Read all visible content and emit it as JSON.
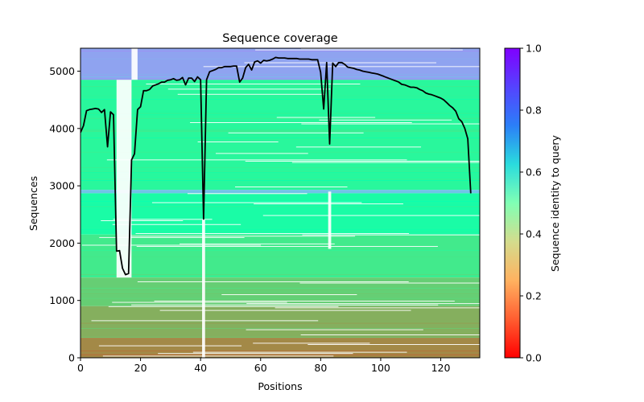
{
  "chart_data": {
    "type": "heatmap",
    "title": "Sequence coverage",
    "xlabel": "Positions",
    "ylabel": "Sequences",
    "xlim": [
      0,
      133
    ],
    "ylim": [
      0,
      5400
    ],
    "x_ticks": [
      0,
      20,
      40,
      60,
      80,
      100,
      120
    ],
    "y_ticks": [
      0,
      1000,
      2000,
      3000,
      4000,
      5000
    ],
    "colorbar": {
      "label": "Sequence identity to query",
      "range": [
        0,
        1
      ],
      "ticks": [
        "0.0",
        "0.2",
        "0.4",
        "0.6",
        "0.8",
        "1.0"
      ],
      "colormap": "rainbow_r"
    },
    "coverage_line": {
      "color": "#000000",
      "points": [
        [
          0,
          3930
        ],
        [
          1,
          4050
        ],
        [
          2,
          4310
        ],
        [
          3,
          4330
        ],
        [
          4,
          4340
        ],
        [
          5,
          4350
        ],
        [
          6,
          4340
        ],
        [
          7,
          4280
        ],
        [
          8,
          4330
        ],
        [
          9,
          3680
        ],
        [
          10,
          4290
        ],
        [
          11,
          4240
        ],
        [
          12,
          1860
        ],
        [
          13,
          1870
        ],
        [
          14,
          1560
        ],
        [
          15,
          1450
        ],
        [
          16,
          1470
        ],
        [
          17,
          3450
        ],
        [
          18,
          3560
        ],
        [
          19,
          4330
        ],
        [
          20,
          4380
        ],
        [
          21,
          4660
        ],
        [
          22,
          4660
        ],
        [
          23,
          4680
        ],
        [
          24,
          4740
        ],
        [
          25,
          4760
        ],
        [
          26,
          4780
        ],
        [
          27,
          4810
        ],
        [
          28,
          4810
        ],
        [
          29,
          4840
        ],
        [
          30,
          4850
        ],
        [
          31,
          4870
        ],
        [
          32,
          4840
        ],
        [
          33,
          4850
        ],
        [
          34,
          4890
        ],
        [
          35,
          4760
        ],
        [
          36,
          4880
        ],
        [
          37,
          4880
        ],
        [
          38,
          4820
        ],
        [
          39,
          4900
        ],
        [
          40,
          4850
        ],
        [
          41,
          2420
        ],
        [
          42,
          4850
        ],
        [
          43,
          4990
        ],
        [
          44,
          5010
        ],
        [
          45,
          5030
        ],
        [
          46,
          5060
        ],
        [
          47,
          5060
        ],
        [
          48,
          5080
        ],
        [
          49,
          5080
        ],
        [
          50,
          5080
        ],
        [
          51,
          5090
        ],
        [
          52,
          5090
        ],
        [
          53,
          4810
        ],
        [
          54,
          4880
        ],
        [
          55,
          5060
        ],
        [
          56,
          5120
        ],
        [
          57,
          5020
        ],
        [
          58,
          5160
        ],
        [
          59,
          5180
        ],
        [
          60,
          5140
        ],
        [
          61,
          5190
        ],
        [
          62,
          5180
        ],
        [
          63,
          5190
        ],
        [
          64,
          5210
        ],
        [
          65,
          5240
        ],
        [
          66,
          5230
        ],
        [
          67,
          5230
        ],
        [
          68,
          5230
        ],
        [
          69,
          5220
        ],
        [
          70,
          5220
        ],
        [
          71,
          5220
        ],
        [
          72,
          5220
        ],
        [
          73,
          5210
        ],
        [
          74,
          5210
        ],
        [
          75,
          5210
        ],
        [
          76,
          5210
        ],
        [
          77,
          5200
        ],
        [
          78,
          5200
        ],
        [
          79,
          5200
        ],
        [
          80,
          4980
        ],
        [
          81,
          4340
        ],
        [
          82,
          5150
        ],
        [
          83,
          3730
        ],
        [
          84,
          5140
        ],
        [
          85,
          5080
        ],
        [
          86,
          5150
        ],
        [
          87,
          5150
        ],
        [
          88,
          5120
        ],
        [
          89,
          5070
        ],
        [
          90,
          5060
        ],
        [
          91,
          5050
        ],
        [
          92,
          5030
        ],
        [
          93,
          5020
        ],
        [
          94,
          5000
        ],
        [
          95,
          4990
        ],
        [
          96,
          4980
        ],
        [
          97,
          4970
        ],
        [
          98,
          4960
        ],
        [
          99,
          4950
        ],
        [
          100,
          4930
        ],
        [
          101,
          4910
        ],
        [
          102,
          4890
        ],
        [
          103,
          4870
        ],
        [
          104,
          4850
        ],
        [
          105,
          4830
        ],
        [
          106,
          4810
        ],
        [
          107,
          4770
        ],
        [
          108,
          4760
        ],
        [
          109,
          4740
        ],
        [
          110,
          4720
        ],
        [
          111,
          4720
        ],
        [
          112,
          4710
        ],
        [
          113,
          4680
        ],
        [
          114,
          4660
        ],
        [
          115,
          4620
        ],
        [
          116,
          4600
        ],
        [
          117,
          4590
        ],
        [
          118,
          4570
        ],
        [
          119,
          4550
        ],
        [
          120,
          4530
        ],
        [
          121,
          4500
        ],
        [
          122,
          4450
        ],
        [
          123,
          4400
        ],
        [
          124,
          4360
        ],
        [
          125,
          4300
        ],
        [
          126,
          4170
        ],
        [
          127,
          4120
        ],
        [
          128,
          4000
        ],
        [
          129,
          3820
        ],
        [
          130,
          2870
        ]
      ]
    },
    "identity_bands": [
      {
        "from": 4850,
        "to": 5400,
        "identity": 0.78
      },
      {
        "from": 2930,
        "to": 4850,
        "identity": 0.42
      },
      {
        "from": 2870,
        "to": 2930,
        "identity": 0.72
      },
      {
        "from": 2150,
        "to": 2870,
        "identity": 0.45
      },
      {
        "from": 1400,
        "to": 2150,
        "identity": 0.37
      },
      {
        "from": 900,
        "to": 1400,
        "identity": 0.3
      },
      {
        "from": 350,
        "to": 900,
        "identity": 0.24
      },
      {
        "from": 0,
        "to": 350,
        "identity": 0.18
      }
    ],
    "gap_columns": [
      {
        "x": [
          12,
          17
        ],
        "from": 1400,
        "to": 4850
      },
      {
        "x": [
          17,
          19
        ],
        "from": 4850,
        "to": 5400
      },
      {
        "x": [
          40.5,
          41.5
        ],
        "from": 0,
        "to": 2420
      },
      {
        "x": [
          82.5,
          83.5
        ],
        "from": 1900,
        "to": 2900
      }
    ]
  }
}
